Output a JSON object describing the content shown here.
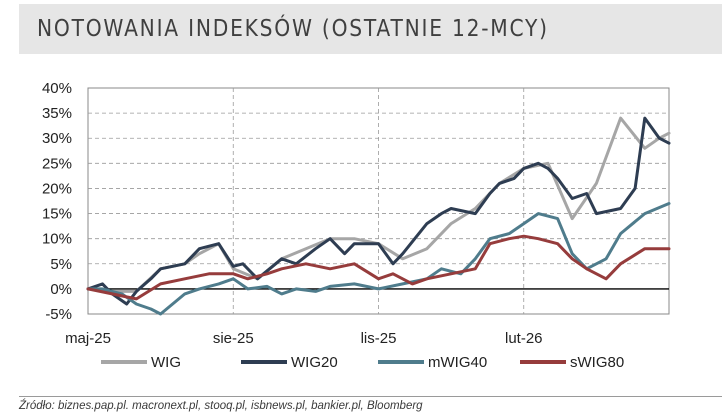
{
  "header": {
    "title": "NOTOWANIA INDEKSÓW (OSTATNIE 12-MCY)"
  },
  "footer": {
    "source": "Źródło: biznes.pap.pl. macronext.pl, stooq.pl, isbnews.pl, bankier.pl, Bloomberg"
  },
  "chart_data": {
    "type": "line",
    "title": "NOTOWANIA INDEKSÓW (OSTATNIE 12-MCY)",
    "xlabel": "",
    "ylabel": "",
    "x_ticks": [
      "maj-25",
      "sie-25",
      "lis-25",
      "lut-26"
    ],
    "x_range": [
      0,
      12
    ],
    "y_ticks": [
      "40%",
      "35%",
      "30%",
      "25%",
      "20%",
      "15%",
      "10%",
      "5%",
      "0%",
      "-5%"
    ],
    "ylim": [
      -5,
      40
    ],
    "grid": "dashed, x and y",
    "legend": "bottom",
    "series": [
      {
        "name": "WIG",
        "color": "#a6a6a6",
        "x": [
          0,
          0.5,
          1,
          1.5,
          2,
          2.3,
          2.7,
          3,
          3.5,
          4,
          4.5,
          5,
          5.5,
          6,
          6.5,
          7,
          7.5,
          8,
          8.5,
          9,
          9.5,
          10,
          10.5,
          11,
          11.5,
          11.8,
          12
        ],
        "values": [
          0,
          -0.5,
          -0.5,
          4,
          5,
          7,
          9,
          4,
          2,
          6,
          8,
          10,
          10,
          9,
          6,
          8,
          13,
          16,
          21,
          24,
          25,
          14,
          21,
          34,
          28,
          30,
          31
        ]
      },
      {
        "name": "WIG20",
        "color": "#2e3d52",
        "x": [
          0,
          0.3,
          0.5,
          0.8,
          1,
          1.3,
          1.5,
          2,
          2.3,
          2.7,
          3,
          3.2,
          3.5,
          4,
          4.3,
          4.7,
          5,
          5.3,
          5.5,
          6,
          6.3,
          6.5,
          7,
          7.3,
          7.5,
          8,
          8.3,
          8.5,
          8.8,
          9,
          9.3,
          9.5,
          9.7,
          10,
          10.3,
          10.5,
          11,
          11.3,
          11.5,
          11.8,
          12
        ],
        "values": [
          0,
          1,
          -1,
          -3,
          -0.5,
          2,
          4,
          5,
          8,
          9,
          4.5,
          5,
          2,
          6,
          5,
          8,
          10,
          7,
          9,
          9,
          5,
          7,
          13,
          15,
          16,
          15,
          19,
          21,
          22,
          24,
          25,
          24,
          22,
          18,
          19,
          15,
          16,
          20,
          34,
          30,
          29
        ]
      },
      {
        "name": "mWIG40",
        "color": "#4f7c8c",
        "x": [
          0,
          0.3,
          0.7,
          1,
          1.3,
          1.5,
          2,
          2.3,
          2.7,
          3,
          3.3,
          3.7,
          4,
          4.3,
          4.7,
          5,
          5.5,
          6,
          6.5,
          7,
          7.3,
          7.7,
          8,
          8.3,
          8.7,
          9,
          9.3,
          9.7,
          10,
          10.3,
          10.7,
          11,
          11.5,
          12
        ],
        "values": [
          0,
          0,
          -1,
          -3,
          -4,
          -5,
          -1,
          0,
          1,
          2,
          0,
          0.5,
          -1,
          0,
          -0.5,
          0.5,
          1,
          0,
          1,
          2,
          4,
          3,
          6,
          10,
          11,
          13,
          15,
          14,
          7,
          4,
          6,
          11,
          15,
          17
        ]
      },
      {
        "name": "sWIG80",
        "color": "#963c3c",
        "x": [
          0,
          0.5,
          1,
          1.5,
          2,
          2.5,
          3,
          3.3,
          3.7,
          4,
          4.5,
          5,
          5.5,
          6,
          6.3,
          6.7,
          7,
          7.5,
          8,
          8.3,
          8.7,
          9,
          9.3,
          9.7,
          10,
          10.3,
          10.7,
          11,
          11.5,
          12
        ],
        "values": [
          0,
          -1,
          -2,
          1,
          2,
          3,
          3,
          2,
          3,
          4,
          5,
          4,
          5,
          2,
          3,
          1,
          2,
          3,
          4,
          9,
          10,
          10.5,
          10,
          9,
          6,
          4,
          2,
          5,
          8,
          8
        ]
      }
    ]
  }
}
